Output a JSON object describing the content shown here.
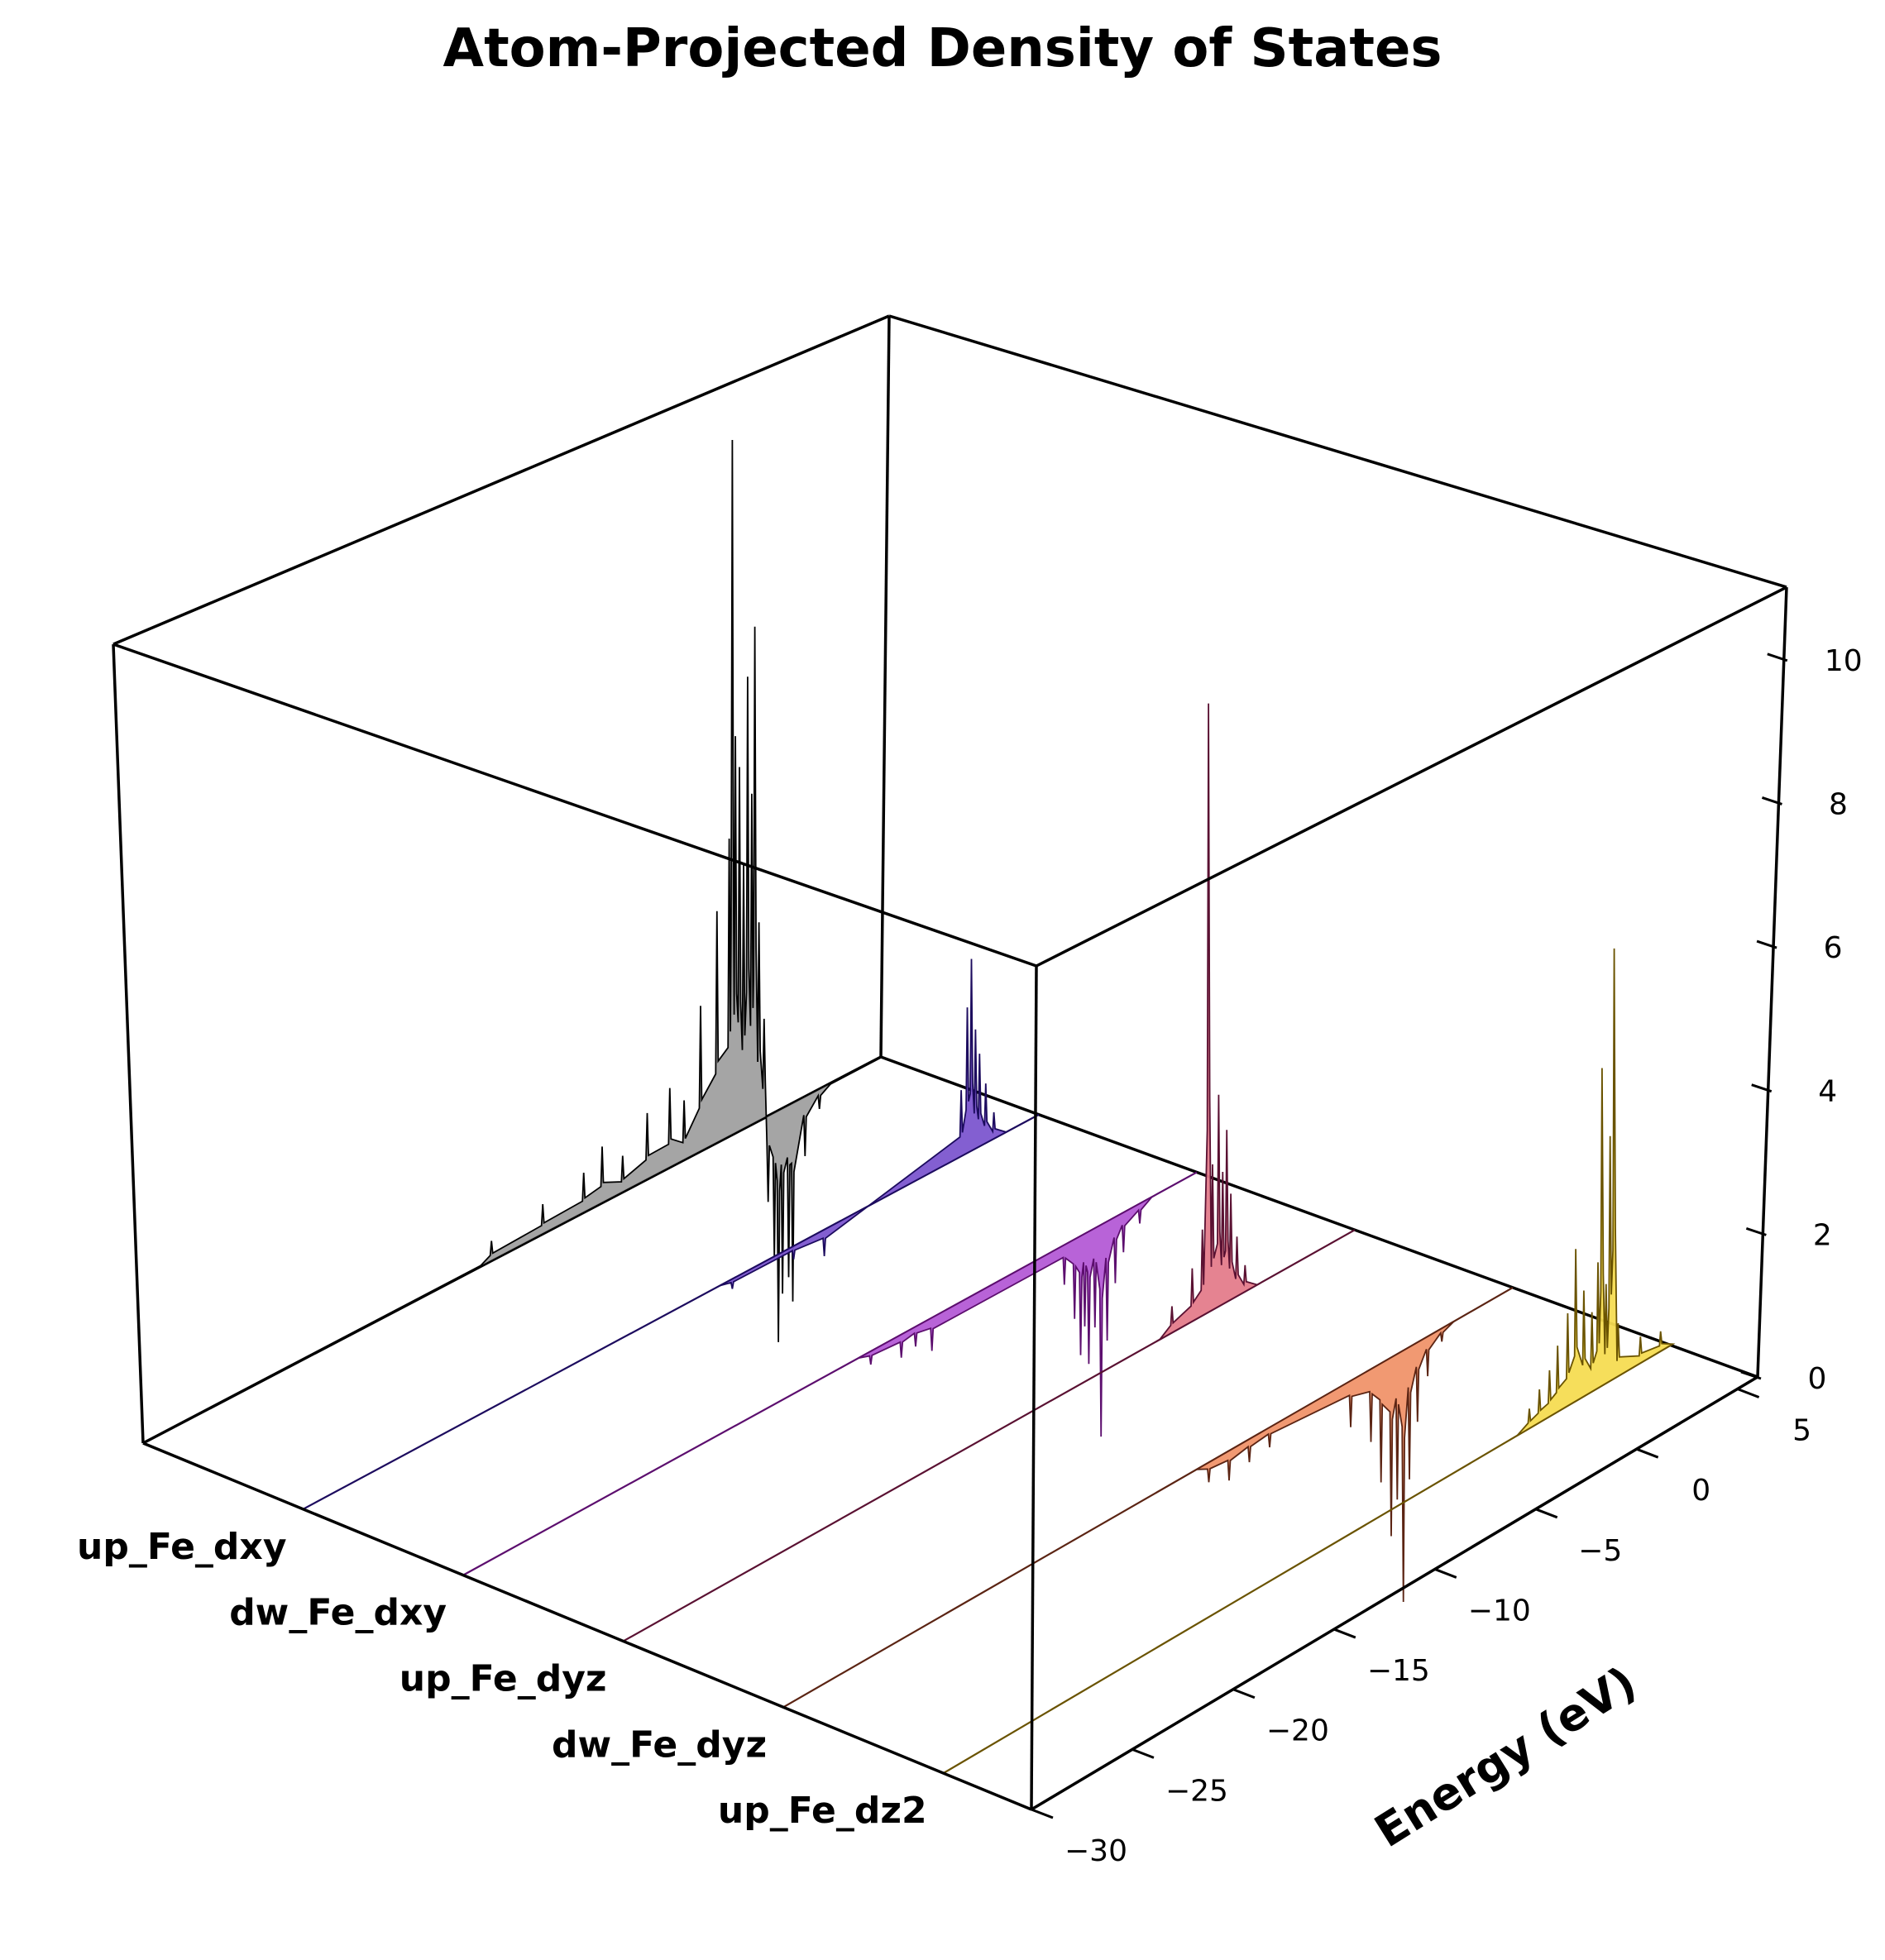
{
  "chart_data": {
    "type": "area",
    "title": "Atom-Projected Density of States",
    "xlabel": "Energy (eV)",
    "ylabel": "",
    "zlabel": "",
    "xlim": [
      -30,
      6
    ],
    "zlim": [
      0,
      11
    ],
    "x_ticks": [
      -30,
      -25,
      -20,
      -15,
      -10,
      -5,
      0,
      5
    ],
    "z_ticks": [
      0,
      2,
      4,
      6,
      8,
      10
    ],
    "categories": [
      "up_Fe_dxy",
      "dw_Fe_dxy",
      "up_Fe_dyz",
      "dw_Fe_dyz",
      "up_Fe_dz2"
    ],
    "series": [
      {
        "color": "#000000",
        "fill": "#a0a0a0",
        "peaks": [
          {
            "x": -13.0,
            "y": 0.3
          },
          {
            "x": -10.5,
            "y": 0.45
          },
          {
            "x": -8.5,
            "y": 0.6
          },
          {
            "x": -7.6,
            "y": 0.85
          },
          {
            "x": -6.6,
            "y": 0.55
          },
          {
            "x": -5.4,
            "y": 1.0
          },
          {
            "x": -4.3,
            "y": 1.2
          },
          {
            "x": -3.6,
            "y": 0.9
          },
          {
            "x": -2.8,
            "y": 2.2
          },
          {
            "x": -2.0,
            "y": 3.5
          },
          {
            "x": -1.4,
            "y": 4.5
          },
          {
            "x": -1.25,
            "y": 10.5
          },
          {
            "x": -1.1,
            "y": 6.0
          },
          {
            "x": -0.9,
            "y": 5.5
          },
          {
            "x": -0.7,
            "y": 4.0
          },
          {
            "x": -0.5,
            "y": 6.8
          },
          {
            "x": -0.3,
            "y": 5.0
          },
          {
            "x": -0.15,
            "y": 7.5
          },
          {
            "x": 0.05,
            "y": 3.0
          },
          {
            "x": 0.3,
            "y": 1.5
          },
          {
            "x": 0.5,
            "y": -1.3
          },
          {
            "x": 0.8,
            "y": -2.2
          },
          {
            "x": 1.0,
            "y": -3.5
          },
          {
            "x": 1.2,
            "y": -2.8
          },
          {
            "x": 1.5,
            "y": -2.6
          },
          {
            "x": 1.7,
            "y": -3.0
          },
          {
            "x": 2.3,
            "y": -0.9
          },
          {
            "x": 3.0,
            "y": -0.3
          }
        ]
      },
      {
        "color": "#1c0b5e",
        "fill": "#7c56cf",
        "peaks": [
          {
            "x": -9.0,
            "y": -0.15
          },
          {
            "x": -6.0,
            "y": -0.2
          },
          {
            "x": -4.5,
            "y": -0.4
          },
          {
            "x": 2.2,
            "y": 1.0
          },
          {
            "x": 2.5,
            "y": 2.2
          },
          {
            "x": 2.7,
            "y": 2.9
          },
          {
            "x": 2.9,
            "y": 1.8
          },
          {
            "x": 3.1,
            "y": 1.4
          },
          {
            "x": 3.4,
            "y": 0.9
          },
          {
            "x": 3.8,
            "y": 0.4
          }
        ]
      },
      {
        "color": "#5c0e6e",
        "fill": "#b45bd6",
        "peaks": [
          {
            "x": -10.0,
            "y": -0.2
          },
          {
            "x": -8.5,
            "y": -0.35
          },
          {
            "x": -7.8,
            "y": -0.3
          },
          {
            "x": -7.0,
            "y": -0.5
          },
          {
            "x": -0.5,
            "y": -0.6
          },
          {
            "x": 0.0,
            "y": -1.2
          },
          {
            "x": 0.3,
            "y": -1.8
          },
          {
            "x": 0.5,
            "y": -1.4
          },
          {
            "x": 0.7,
            "y": -2.0
          },
          {
            "x": 1.0,
            "y": -1.5
          },
          {
            "x": 1.3,
            "y": -3.2
          },
          {
            "x": 1.6,
            "y": -1.8
          },
          {
            "x": 2.0,
            "y": -1.0
          },
          {
            "x": 2.4,
            "y": -0.6
          },
          {
            "x": 3.2,
            "y": -0.3
          }
        ]
      },
      {
        "color": "#5a1132",
        "fill": "#e47c8b",
        "peaks": [
          {
            "x": -3.0,
            "y": 0.4
          },
          {
            "x": -2.0,
            "y": 0.8
          },
          {
            "x": -1.5,
            "y": 1.3
          },
          {
            "x": -1.2,
            "y": 9.2
          },
          {
            "x": -1.0,
            "y": 2.2
          },
          {
            "x": -0.7,
            "y": 3.2
          },
          {
            "x": -0.5,
            "y": 2.0
          },
          {
            "x": -0.3,
            "y": 2.6
          },
          {
            "x": -0.1,
            "y": 1.6
          },
          {
            "x": 0.2,
            "y": 0.9
          },
          {
            "x": 0.6,
            "y": 0.4
          }
        ]
      },
      {
        "color": "#5b2413",
        "fill": "#f0936a",
        "peaks": [
          {
            "x": -9.0,
            "y": -0.3
          },
          {
            "x": -8.0,
            "y": -0.45
          },
          {
            "x": -7.0,
            "y": -0.35
          },
          {
            "x": -6.0,
            "y": -0.3
          },
          {
            "x": -2.0,
            "y": -0.7
          },
          {
            "x": -1.0,
            "y": -1.1
          },
          {
            "x": -0.5,
            "y": -1.8
          },
          {
            "x": 0.0,
            "y": -2.7
          },
          {
            "x": 0.3,
            "y": -2.2
          },
          {
            "x": 0.6,
            "y": -3.8
          },
          {
            "x": 0.9,
            "y": -2.0
          },
          {
            "x": 1.3,
            "y": -1.2
          },
          {
            "x": 1.8,
            "y": -0.6
          },
          {
            "x": 2.5,
            "y": -0.2
          }
        ]
      },
      {
        "color": "#6a5300",
        "fill": "#f6dc52",
        "peaks": [
          {
            "x": -1.0,
            "y": 0.3
          },
          {
            "x": -0.5,
            "y": 0.5
          },
          {
            "x": 0.0,
            "y": 0.7
          },
          {
            "x": 0.4,
            "y": 1.0
          },
          {
            "x": 0.9,
            "y": 1.4
          },
          {
            "x": 1.3,
            "y": 2.3
          },
          {
            "x": 1.7,
            "y": 1.6
          },
          {
            "x": 2.1,
            "y": 1.2
          },
          {
            "x": 2.4,
            "y": 1.9
          },
          {
            "x": 2.6,
            "y": 4.8
          },
          {
            "x": 2.8,
            "y": 1.5
          },
          {
            "x": 3.0,
            "y": 3.7
          },
          {
            "x": 3.2,
            "y": 6.5
          },
          {
            "x": 3.4,
            "y": 0.8
          },
          {
            "x": 4.5,
            "y": 0.4
          },
          {
            "x": 5.5,
            "y": 0.3
          }
        ]
      }
    ]
  }
}
